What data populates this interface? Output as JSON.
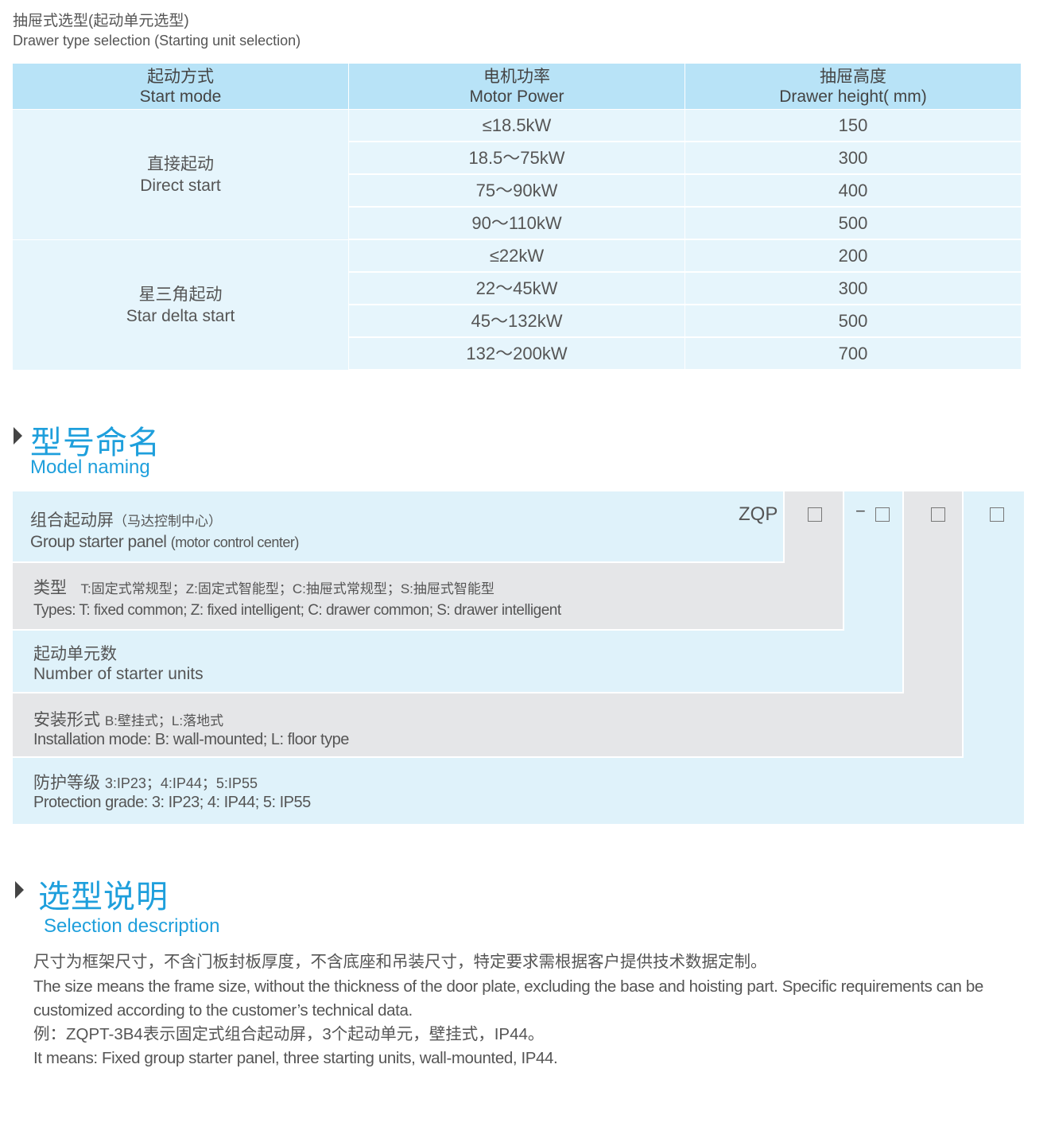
{
  "drawer_section": {
    "title_cn": "抽屉式选型(起动单元选型)",
    "title_en": "Drawer type selection (Starting unit selection)",
    "table": {
      "headers": [
        {
          "cn": "起动方式",
          "en": "Start mode"
        },
        {
          "cn": "电机功率",
          "en": "Motor Power"
        },
        {
          "cn": "抽屉高度",
          "en": "Drawer height( mm)"
        }
      ],
      "groups": [
        {
          "cn": "直接起动",
          "en": "Direct start",
          "rows": [
            {
              "power": "≤18.5kW",
              "height": "150"
            },
            {
              "power": "18.5～75kW",
              "height": "300"
            },
            {
              "power": "75～90kW",
              "height": "400"
            },
            {
              "power": "90～110kW",
              "height": "500"
            }
          ]
        },
        {
          "cn": "星三角起动",
          "en": "Star delta start",
          "rows": [
            {
              "power": "≤22kW",
              "height": "200"
            },
            {
              "power": "22～45kW",
              "height": "300"
            },
            {
              "power": "45～132kW",
              "height": "500"
            },
            {
              "power": "132～200kW",
              "height": "700"
            }
          ]
        }
      ]
    }
  },
  "model_naming": {
    "title_cn": "型号命名",
    "title_en": "Model naming",
    "prefix": "ZQP",
    "dash": "−",
    "rows": [
      {
        "cn": "组合起动屏",
        "cn_note": "（马达控制中心）",
        "en": "Group starter panel",
        "en_note": "(motor control center)"
      },
      {
        "cn": "类型",
        "cn_note": "T:固定式常规型；Z:固定式智能型；C:抽屉式常规型；S:抽屉式智能型",
        "en": "Types: T: fixed common; Z: fixed intelligent; C: drawer common; S: drawer intelligent"
      },
      {
        "cn": "起动单元数",
        "en": "Number of starter units"
      },
      {
        "cn": "安装形式",
        "cn_note": "B:壁挂式；L:落地式",
        "en": "Installation mode: B: wall-mounted; L: floor type"
      },
      {
        "cn": "防护等级",
        "cn_note": "3:IP23；4:IP44；5:IP55",
        "en": "Protection grade:  3: IP23; 4: IP44; 5: IP55"
      }
    ]
  },
  "selection": {
    "title_cn": "选型说明",
    "title_en": "Selection description",
    "lines": [
      "尺寸为框架尺寸，不含门板封板厚度，不含底座和吊装尺寸，特定要求需根据客户提供技术数据定制。",
      "The size means the frame size, without the thickness of the door plate, excluding the base and hoisting part. Specific requirements can be customized according to the customer’s technical data.",
      "例：ZQPT-3B4表示固定式组合起动屏，3个起动单元，壁挂式，IP44。",
      "It means: Fixed group starter panel, three starting units, wall-mounted, IP44."
    ]
  },
  "colors": {
    "accent": "#1e9fdc",
    "table_header": "#b8e3f7",
    "table_body": "#e6f5fc",
    "panel_blue": "#dff2fa",
    "panel_grey": "#e5e6e8"
  }
}
